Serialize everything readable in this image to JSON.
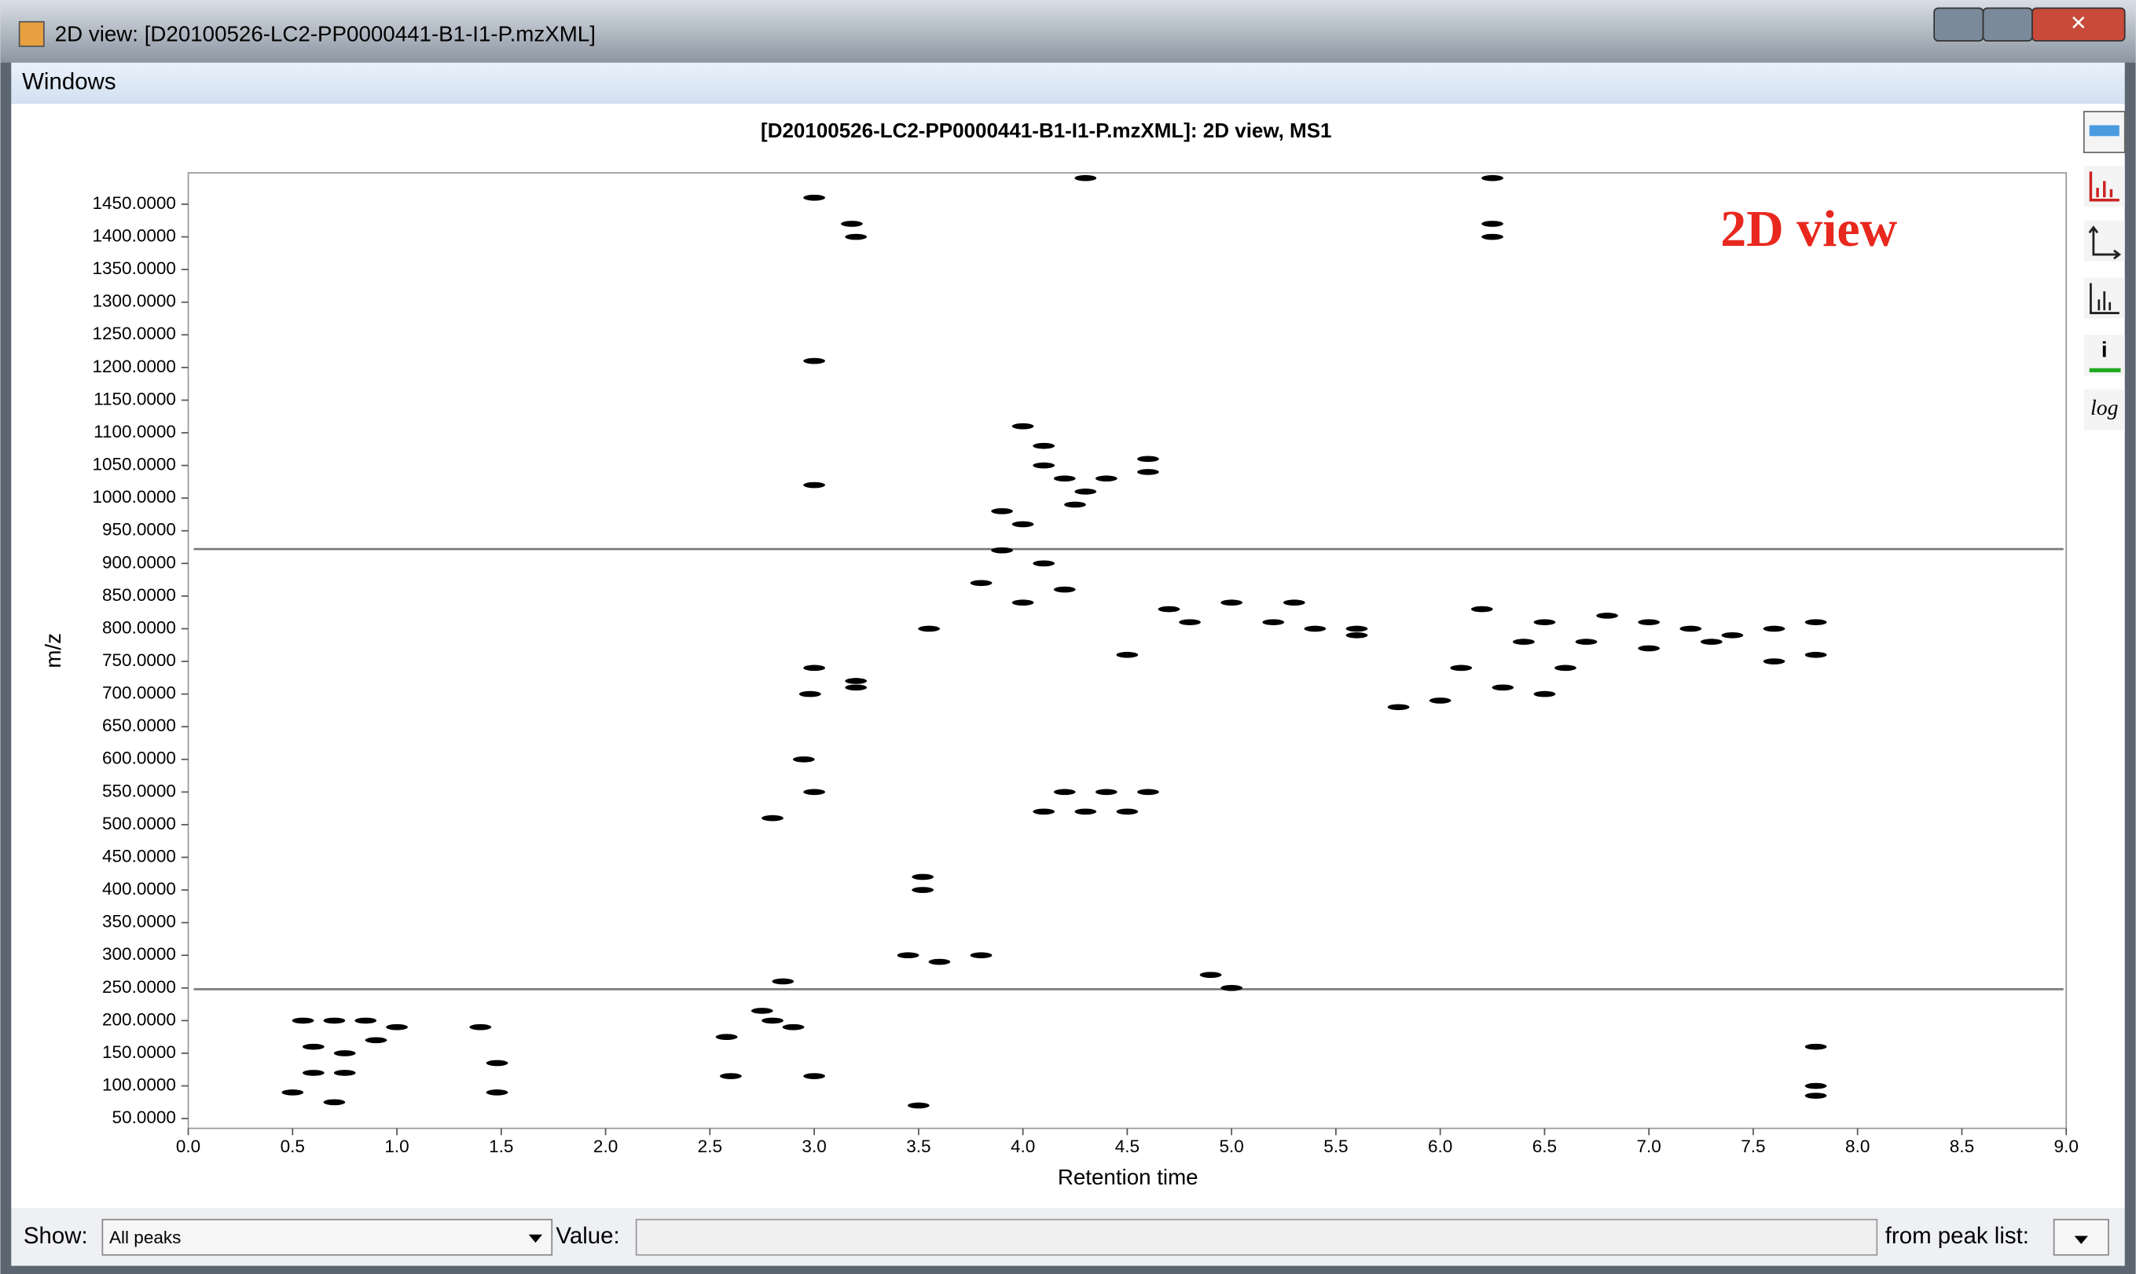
{
  "window": {
    "title": "2D view: [D20100526-LC2-PP0000441-B1-I1-P.mzXML]"
  },
  "menu": [
    "Windows"
  ],
  "toolbar": {
    "log": "log"
  },
  "controls": {
    "show_label": "Show:",
    "show_value": "All peaks",
    "value_label": "Value:",
    "peak_list_label": "from peak list:"
  },
  "chart_data": {
    "type": "scatter",
    "title": "[D20100526-LC2-PP0000441-B1-I1-P.mzXML]: 2D view, MS1",
    "x_label": "Retention time",
    "y_label": "m/z",
    "annotation": "2D view",
    "color": "#000000",
    "xlim": [
      0,
      9
    ],
    "ylim": [
      35,
      1498
    ],
    "xticks": [
      {
        "value": 0,
        "label": "0.0"
      },
      0.5,
      {
        "value": 1,
        "label": "1.0"
      },
      1.5,
      {
        "value": 2,
        "label": "2.0"
      },
      2.5,
      {
        "value": 3,
        "label": "3.0"
      },
      3.5,
      {
        "value": 4,
        "label": "4.0"
      },
      4.5,
      {
        "value": 5,
        "label": "5.0"
      },
      5.5,
      {
        "value": 6,
        "label": "6.0"
      },
      6.5,
      {
        "value": 7,
        "label": "7.0"
      },
      7.5,
      {
        "value": 8,
        "label": "8.0"
      },
      8.5,
      {
        "value": 9,
        "label": "9.0"
      }
    ],
    "yticks": [
      {
        "value": 50,
        "label": "50.0000"
      },
      {
        "value": 100,
        "label": "100.0000"
      },
      {
        "value": 150,
        "label": "150.0000"
      },
      {
        "value": 200,
        "label": "200.0000"
      },
      {
        "value": 250,
        "label": "250.0000"
      },
      {
        "value": 300,
        "label": "300.0000"
      },
      {
        "value": 350,
        "label": "350.0000"
      },
      {
        "value": 400,
        "label": "400.0000"
      },
      {
        "value": 450,
        "label": "450.0000"
      },
      {
        "value": 500,
        "label": "500.0000"
      },
      {
        "value": 550,
        "label": "550.0000"
      },
      {
        "value": 600,
        "label": "600.0000"
      },
      {
        "value": 650,
        "label": "650.0000"
      },
      {
        "value": 700,
        "label": "700.0000"
      },
      {
        "value": 750,
        "label": "750.0000"
      },
      {
        "value": 800,
        "label": "800.0000"
      },
      {
        "value": 850,
        "label": "850.0000"
      },
      {
        "value": 900,
        "label": "900.0000"
      },
      {
        "value": 950,
        "label": "950.0000"
      },
      {
        "value": 1000,
        "label": "1000.0000"
      },
      {
        "value": 1050,
        "label": "1050.0000"
      },
      {
        "value": 1100,
        "label": "1100.0000"
      },
      {
        "value": 1150,
        "label": "1150.0000"
      },
      {
        "value": 1200,
        "label": "1200.0000"
      },
      {
        "value": 1250,
        "label": "1250.0000"
      },
      {
        "value": 1300,
        "label": "1300.0000"
      },
      {
        "value": 1350,
        "label": "1350.0000"
      },
      {
        "value": 1400,
        "label": "1400.0000"
      },
      {
        "value": 1450,
        "label": "1450.0000"
      }
    ],
    "hlines": [
      922,
      248
    ],
    "x": [
      0.55,
      0.7,
      0.85,
      0.6,
      0.75,
      0.6,
      0.75,
      0.9,
      1.0,
      0.5,
      0.7,
      1.4,
      1.48,
      1.48,
      2.58,
      2.6,
      2.75,
      2.8,
      2.85,
      2.9,
      3.0,
      2.98,
      3.2,
      3.2,
      3.18,
      3.2,
      3.52,
      3.52,
      3.55,
      3.45,
      3.6,
      3.8,
      3.0,
      2.95,
      3.0,
      4.1,
      4.2,
      4.3,
      4.25,
      4.4,
      4.6,
      4.6,
      4.2,
      4.4,
      4.6,
      4.3,
      4.5,
      4.1,
      4.7,
      4.8,
      5.0,
      5.2,
      5.4,
      5.6,
      5.3,
      5.6,
      4.5,
      4.0,
      3.9,
      4.1,
      6.2,
      6.5,
      6.8,
      7.0,
      7.2,
      7.4,
      7.6,
      7.8,
      6.4,
      6.7,
      7.0,
      7.3,
      6.3,
      6.5,
      6.1,
      6.6,
      6.0,
      5.8,
      7.6,
      7.8,
      6.25,
      6.25,
      6.25,
      7.8,
      7.8,
      7.8,
      3.5,
      4.3,
      3.0,
      3.0,
      3.0,
      2.8,
      4.9,
      5.0,
      4.0,
      4.1,
      3.9,
      4.0,
      3.8,
      4.2
    ],
    "values": [
      200,
      200,
      200,
      160,
      150,
      120,
      120,
      170,
      190,
      90,
      75,
      190,
      135,
      90,
      175,
      115,
      215,
      200,
      260,
      190,
      740,
      700,
      710,
      720,
      1420,
      1400,
      400,
      420,
      800,
      300,
      290,
      300,
      115,
      600,
      550,
      1050,
      1030,
      1010,
      990,
      1030,
      1060,
      1040,
      550,
      550,
      550,
      520,
      520,
      520,
      830,
      810,
      840,
      810,
      800,
      800,
      840,
      790,
      760,
      840,
      920,
      900,
      830,
      810,
      820,
      810,
      800,
      790,
      800,
      810,
      780,
      780,
      770,
      780,
      710,
      700,
      740,
      740,
      690,
      680,
      750,
      760,
      1420,
      1400,
      1490,
      100,
      85,
      160,
      70,
      1490,
      1210,
      1460,
      1020,
      510,
      270,
      250,
      1110,
      1080,
      980,
      960,
      870,
      860
    ]
  }
}
